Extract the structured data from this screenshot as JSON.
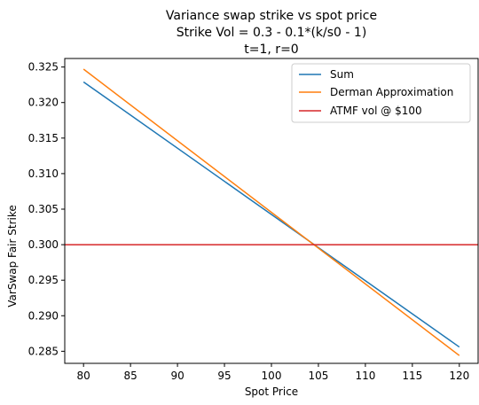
{
  "chart_data": {
    "type": "line",
    "title_lines": [
      "Variance swap strike vs spot price",
      "Strike Vol = 0.3 - 0.1*(k/s0 - 1)",
      "t=1, r=0"
    ],
    "xlabel": "Spot Price",
    "ylabel": "VarSwap Fair Strike",
    "xlim": [
      78,
      122
    ],
    "ylim": [
      0.2833,
      0.3262
    ],
    "xticks": [
      80,
      85,
      90,
      95,
      100,
      105,
      110,
      115,
      120
    ],
    "yticks": [
      0.285,
      0.29,
      0.295,
      0.3,
      0.305,
      0.31,
      0.315,
      0.32,
      0.325
    ],
    "grid": false,
    "legend_position": "upper right",
    "series": [
      {
        "name": "Sum",
        "color": "#1f77b4",
        "x": [
          80,
          120
        ],
        "y": [
          0.3229,
          0.2856
        ]
      },
      {
        "name": "Derman Approximation",
        "color": "#ff7f0e",
        "x": [
          80,
          120
        ],
        "y": [
          0.3247,
          0.2844
        ]
      },
      {
        "name": "ATMF vol @ $100",
        "color": "#d62728",
        "hline": 0.3
      }
    ]
  }
}
